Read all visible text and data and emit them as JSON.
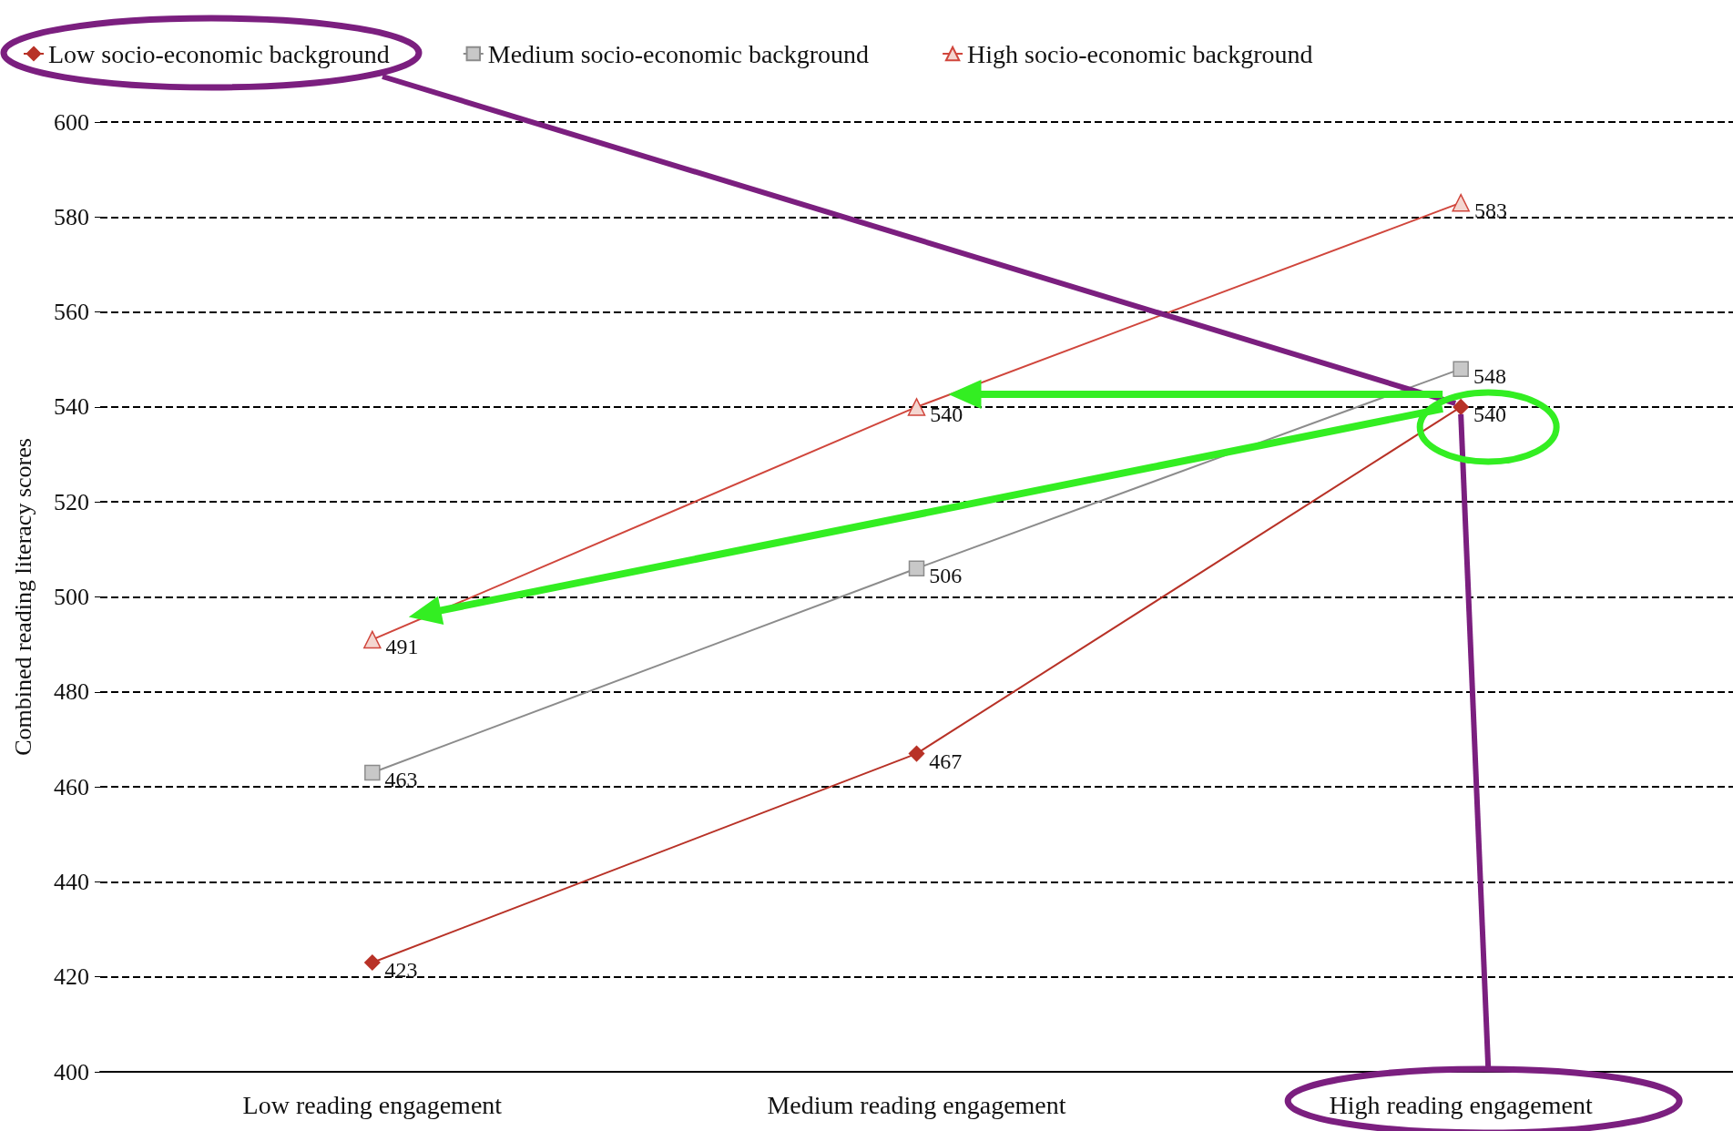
{
  "chart_data": {
    "type": "line",
    "ylabel": "Combined reading literacy scores",
    "categories": [
      "Low reading engagement",
      "Medium reading engagement",
      "High reading engagement"
    ],
    "series": [
      {
        "name": "Low socio-economic background",
        "color": "#b83227",
        "marker": "diamond",
        "values": [
          423,
          467,
          540
        ]
      },
      {
        "name": "Medium socio-economic background",
        "color": "#8c8c8c",
        "marker": "square",
        "values": [
          463,
          506,
          548
        ]
      },
      {
        "name": "High socio-economic background",
        "color": "#d0463c",
        "marker": "triangle",
        "values": [
          491,
          540,
          583
        ]
      }
    ],
    "ylim": [
      400,
      600
    ],
    "yticks": [
      400,
      420,
      440,
      460,
      480,
      500,
      520,
      540,
      560,
      580,
      600
    ],
    "grid": "y",
    "legend": "top left",
    "data_labels": true,
    "line_style": "solid"
  }
}
